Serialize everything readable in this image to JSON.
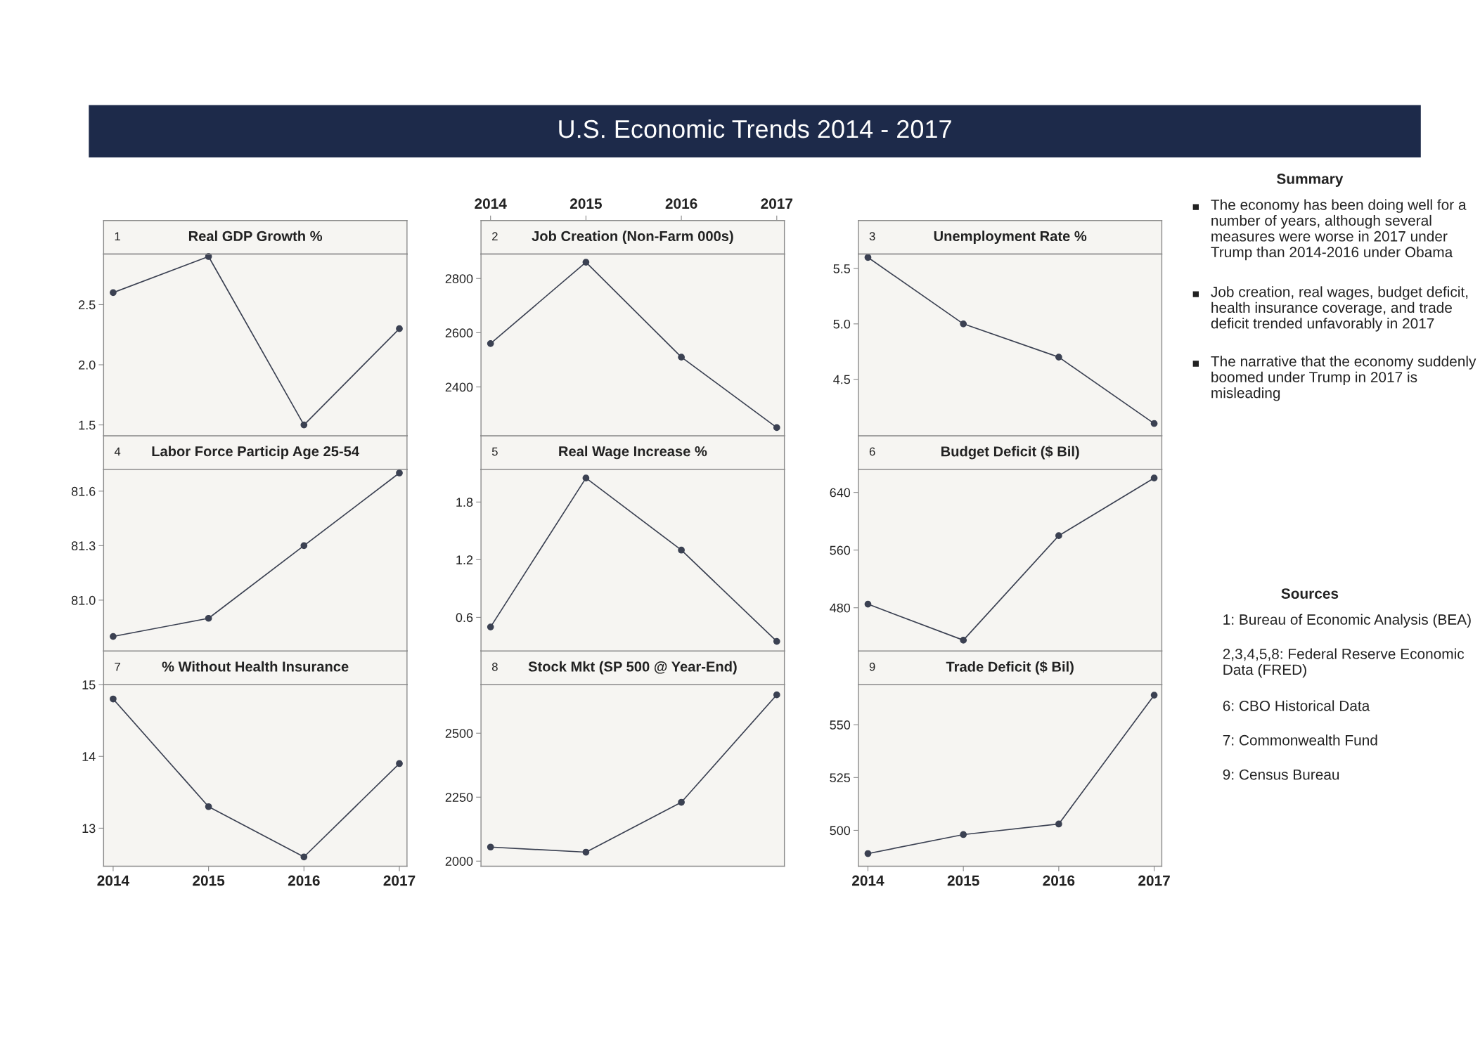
{
  "chart_data": [
    {
      "type": "other",
      "title": "U.S. Economic Trends 2014 - 2017",
      "color": "#1d2a4a"
    },
    {
      "type": "line",
      "title": "Real GDP Growth %",
      "annotations": [
        "1"
      ],
      "x": [
        2014,
        2015,
        2016,
        2017
      ],
      "values": [
        2.6,
        2.9,
        1.5,
        2.3
      ],
      "color": "#3b4152",
      "marker": "circle",
      "line_style": "solid",
      "xlim": [
        2013.9,
        2017.08
      ],
      "ylim": [
        1.41,
        2.92
      ],
      "yticks": [
        1.5,
        {
          "value": 2,
          "label": "2.0"
        },
        2.5
      ],
      "tick_labels": "y"
    },
    {
      "type": "line",
      "title": "Job Creation (Non-Farm 000s)",
      "annotations": [
        "2"
      ],
      "x": [
        2014,
        2015,
        2016,
        2017
      ],
      "values": [
        2560,
        2860,
        2510,
        2250
      ],
      "color": "#3b4152",
      "marker": "circle",
      "line_style": "solid",
      "xlim": [
        2013.9,
        2017.08
      ],
      "ylim": [
        2220,
        2890
      ],
      "yticks": [
        2400,
        2600,
        2800
      ],
      "x2lim": [
        2013.9,
        2017.08
      ],
      "x2ticks": [
        2014,
        2015,
        2016,
        2017
      ],
      "tick_labels": "y"
    },
    {
      "type": "line",
      "title": "Unemployment Rate %",
      "annotations": [
        "3"
      ],
      "x": [
        2014,
        2015,
        2016,
        2017
      ],
      "values": [
        5.6,
        5.0,
        4.7,
        4.1
      ],
      "color": "#3b4152",
      "marker": "circle",
      "line_style": "solid",
      "xlim": [
        2013.9,
        2017.08
      ],
      "ylim": [
        3.99,
        5.63
      ],
      "yticks": [
        4.5,
        {
          "value": 5,
          "label": "5.0"
        },
        5.5
      ],
      "tick_labels": "y"
    },
    {
      "type": "line",
      "title": "Labor Force Particip Age 25-54",
      "annotations": [
        "4"
      ],
      "x": [
        2014,
        2015,
        2016,
        2017
      ],
      "values": [
        80.8,
        80.9,
        81.3,
        81.7
      ],
      "color": "#3b4152",
      "marker": "circle",
      "line_style": "solid",
      "xlim": [
        2013.9,
        2017.08
      ],
      "ylim": [
        80.72,
        81.72
      ],
      "yticks": [
        {
          "value": 81,
          "label": "81.0"
        },
        81.3,
        81.6
      ],
      "tick_labels": "y"
    },
    {
      "type": "line",
      "title": "Real Wage Increase %",
      "annotations": [
        "5"
      ],
      "x": [
        2014,
        2015,
        2016,
        2017
      ],
      "values": [
        0.5,
        2.05,
        1.3,
        0.35
      ],
      "color": "#3b4152",
      "marker": "circle",
      "line_style": "solid",
      "xlim": [
        2013.9,
        2017.08
      ],
      "ylim": [
        0.25,
        2.14
      ],
      "yticks": [
        0.6,
        1.2,
        1.8
      ],
      "tick_labels": "y"
    },
    {
      "type": "line",
      "title": "Budget Deficit ($ Bil)",
      "annotations": [
        "6"
      ],
      "x": [
        2014,
        2015,
        2016,
        2017
      ],
      "values": [
        485,
        435,
        580,
        660
      ],
      "color": "#3b4152",
      "marker": "circle",
      "line_style": "solid",
      "xlim": [
        2013.9,
        2017.08
      ],
      "ylim": [
        420,
        672
      ],
      "yticks": [
        480,
        560,
        640
      ],
      "tick_labels": "y"
    },
    {
      "type": "line",
      "title": "% Without Health Insurance",
      "annotations": [
        "7"
      ],
      "x": [
        2014,
        2015,
        2016,
        2017
      ],
      "values": [
        14.8,
        13.3,
        12.6,
        13.9
      ],
      "color": "#3b4152",
      "marker": "circle",
      "line_style": "solid",
      "xlim": [
        2013.9,
        2017.08
      ],
      "ylim": [
        12.47,
        15.0
      ],
      "yticks": [
        13,
        14,
        15
      ],
      "xticks": [
        2014,
        2015,
        2016,
        2017
      ]
    },
    {
      "type": "line",
      "title": "Stock Mkt (SP 500 @ Year-End)",
      "annotations": [
        "8"
      ],
      "x": [
        2014,
        2015,
        2016,
        2017
      ],
      "values": [
        2055,
        2035,
        2230,
        2650
      ],
      "color": "#3b4152",
      "marker": "circle",
      "line_style": "solid",
      "xlim": [
        2013.9,
        2017.08
      ],
      "ylim": [
        1980,
        2690
      ],
      "yticks": [
        2000,
        2250,
        2500
      ],
      "tick_labels": "y"
    },
    {
      "type": "line",
      "title": "Trade Deficit ($ Bil)",
      "annotations": [
        "9"
      ],
      "x": [
        2014,
        2015,
        2016,
        2017
      ],
      "values": [
        489,
        498,
        503,
        564
      ],
      "color": "#3b4152",
      "marker": "circle",
      "line_style": "solid",
      "xlim": [
        2013.9,
        2017.08
      ],
      "ylim": [
        483,
        569
      ],
      "yticks": [
        500,
        525,
        550
      ],
      "xticks": [
        2014,
        2015,
        2016,
        2017
      ]
    },
    {
      "type": "other",
      "title": "Summary",
      "annotations": [
        "The economy has been doing well for a number of years, although several measures were worse in 2017 under Trump than 2014-2016 under Obama",
        "Job creation, real wages, budget deficit, health insurance coverage, and trade deficit trended unfavorably in 2017",
        "The narrative that the economy suddenly boomed under Trump in 2017 is misleading"
      ]
    },
    {
      "type": "other",
      "title": "Sources",
      "annotations": [
        "1: Bureau of Economic Analysis (BEA)",
        "2,3,4,5,8: Federal Reserve Economic Data (FRED)",
        "6: CBO Historical Data",
        "7: Commonwealth Fund",
        "9: Census Bureau"
      ]
    }
  ]
}
